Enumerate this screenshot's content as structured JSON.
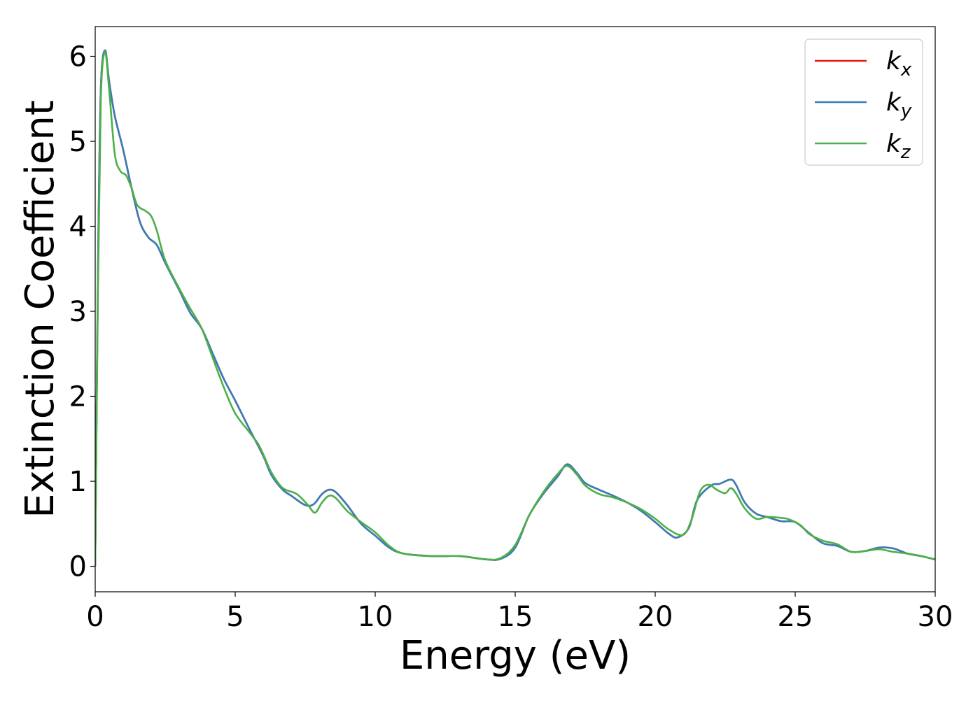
{
  "chart_data": {
    "type": "line",
    "xlabel": "Energy (eV)",
    "ylabel": "Extinction Coefficient",
    "xlim": [
      0,
      30
    ],
    "ylim": [
      -0.3,
      6.35
    ],
    "xticks": [
      "0",
      "5",
      "10",
      "15",
      "20",
      "25",
      "30"
    ],
    "yticks": [
      "0",
      "1",
      "2",
      "3",
      "4",
      "5",
      "6"
    ],
    "grid": false,
    "legend_position": "top-right",
    "series": [
      {
        "name": "k_x",
        "label_main": "k",
        "label_sub": "x",
        "color": "#e41a1c",
        "points": [
          [
            0,
            0
          ],
          [
            0.1,
            3.5
          ],
          [
            0.2,
            5.6
          ],
          [
            0.35,
            6.07
          ],
          [
            0.5,
            5.7
          ],
          [
            0.7,
            5.3
          ],
          [
            1.0,
            4.9
          ],
          [
            1.3,
            4.45
          ],
          [
            1.6,
            4.05
          ],
          [
            1.9,
            3.87
          ],
          [
            2.2,
            3.78
          ],
          [
            2.5,
            3.57
          ],
          [
            3.0,
            3.25
          ],
          [
            3.4,
            2.98
          ],
          [
            3.8,
            2.8
          ],
          [
            4.2,
            2.5
          ],
          [
            4.6,
            2.2
          ],
          [
            5.0,
            1.95
          ],
          [
            5.5,
            1.62
          ],
          [
            6.0,
            1.3
          ],
          [
            6.3,
            1.07
          ],
          [
            6.7,
            0.9
          ],
          [
            7.0,
            0.83
          ],
          [
            7.5,
            0.72
          ],
          [
            7.8,
            0.73
          ],
          [
            8.1,
            0.85
          ],
          [
            8.35,
            0.9
          ],
          [
            8.6,
            0.87
          ],
          [
            9.0,
            0.72
          ],
          [
            9.5,
            0.5
          ],
          [
            10.0,
            0.36
          ],
          [
            10.5,
            0.22
          ],
          [
            11.0,
            0.15
          ],
          [
            12.0,
            0.12
          ],
          [
            13.0,
            0.12
          ],
          [
            14.0,
            0.08
          ],
          [
            14.5,
            0.09
          ],
          [
            15.0,
            0.22
          ],
          [
            15.5,
            0.6
          ],
          [
            16.0,
            0.85
          ],
          [
            16.5,
            1.05
          ],
          [
            16.85,
            1.2
          ],
          [
            17.2,
            1.1
          ],
          [
            17.5,
            0.98
          ],
          [
            18.0,
            0.9
          ],
          [
            18.5,
            0.83
          ],
          [
            19.0,
            0.75
          ],
          [
            19.5,
            0.65
          ],
          [
            20.0,
            0.52
          ],
          [
            20.5,
            0.38
          ],
          [
            20.8,
            0.34
          ],
          [
            21.2,
            0.45
          ],
          [
            21.5,
            0.78
          ],
          [
            22.0,
            0.95
          ],
          [
            22.3,
            0.97
          ],
          [
            22.7,
            1.02
          ],
          [
            22.9,
            0.95
          ],
          [
            23.2,
            0.75
          ],
          [
            23.6,
            0.62
          ],
          [
            24.0,
            0.58
          ],
          [
            24.5,
            0.53
          ],
          [
            25.0,
            0.52
          ],
          [
            25.5,
            0.39
          ],
          [
            26.0,
            0.27
          ],
          [
            26.5,
            0.24
          ],
          [
            27.0,
            0.17
          ],
          [
            27.5,
            0.18
          ],
          [
            28.0,
            0.22
          ],
          [
            28.5,
            0.21
          ],
          [
            29.0,
            0.15
          ],
          [
            29.5,
            0.12
          ],
          [
            30.0,
            0.08
          ]
        ]
      },
      {
        "name": "k_y",
        "label_main": "k",
        "label_sub": "y",
        "color": "#377eb8",
        "points": [
          [
            0,
            0
          ],
          [
            0.1,
            3.5
          ],
          [
            0.2,
            5.6
          ],
          [
            0.35,
            6.07
          ],
          [
            0.5,
            5.7
          ],
          [
            0.7,
            5.3
          ],
          [
            1.0,
            4.9
          ],
          [
            1.3,
            4.45
          ],
          [
            1.6,
            4.05
          ],
          [
            1.9,
            3.87
          ],
          [
            2.2,
            3.78
          ],
          [
            2.5,
            3.57
          ],
          [
            3.0,
            3.25
          ],
          [
            3.4,
            2.98
          ],
          [
            3.8,
            2.8
          ],
          [
            4.2,
            2.5
          ],
          [
            4.6,
            2.2
          ],
          [
            5.0,
            1.95
          ],
          [
            5.5,
            1.62
          ],
          [
            6.0,
            1.3
          ],
          [
            6.3,
            1.07
          ],
          [
            6.7,
            0.9
          ],
          [
            7.0,
            0.83
          ],
          [
            7.5,
            0.72
          ],
          [
            7.8,
            0.73
          ],
          [
            8.1,
            0.85
          ],
          [
            8.35,
            0.9
          ],
          [
            8.6,
            0.87
          ],
          [
            9.0,
            0.72
          ],
          [
            9.5,
            0.5
          ],
          [
            10.0,
            0.36
          ],
          [
            10.5,
            0.22
          ],
          [
            11.0,
            0.15
          ],
          [
            12.0,
            0.12
          ],
          [
            13.0,
            0.12
          ],
          [
            14.0,
            0.08
          ],
          [
            14.5,
            0.09
          ],
          [
            15.0,
            0.22
          ],
          [
            15.5,
            0.6
          ],
          [
            16.0,
            0.85
          ],
          [
            16.5,
            1.05
          ],
          [
            16.85,
            1.2
          ],
          [
            17.2,
            1.1
          ],
          [
            17.5,
            0.98
          ],
          [
            18.0,
            0.9
          ],
          [
            18.5,
            0.83
          ],
          [
            19.0,
            0.75
          ],
          [
            19.5,
            0.65
          ],
          [
            20.0,
            0.52
          ],
          [
            20.5,
            0.38
          ],
          [
            20.8,
            0.34
          ],
          [
            21.2,
            0.45
          ],
          [
            21.5,
            0.78
          ],
          [
            22.0,
            0.95
          ],
          [
            22.3,
            0.97
          ],
          [
            22.7,
            1.02
          ],
          [
            22.9,
            0.95
          ],
          [
            23.2,
            0.75
          ],
          [
            23.6,
            0.62
          ],
          [
            24.0,
            0.58
          ],
          [
            24.5,
            0.53
          ],
          [
            25.0,
            0.52
          ],
          [
            25.5,
            0.39
          ],
          [
            26.0,
            0.27
          ],
          [
            26.5,
            0.24
          ],
          [
            27.0,
            0.17
          ],
          [
            27.5,
            0.18
          ],
          [
            28.0,
            0.22
          ],
          [
            28.5,
            0.21
          ],
          [
            29.0,
            0.15
          ],
          [
            29.5,
            0.12
          ],
          [
            30.0,
            0.08
          ]
        ]
      },
      {
        "name": "k_z",
        "label_main": "k",
        "label_sub": "z",
        "color": "#4daf4a",
        "points": [
          [
            0,
            0
          ],
          [
            0.1,
            3.3
          ],
          [
            0.2,
            5.5
          ],
          [
            0.35,
            6.05
          ],
          [
            0.5,
            5.6
          ],
          [
            0.7,
            4.85
          ],
          [
            0.9,
            4.65
          ],
          [
            1.1,
            4.6
          ],
          [
            1.3,
            4.45
          ],
          [
            1.5,
            4.25
          ],
          [
            1.8,
            4.18
          ],
          [
            2.0,
            4.12
          ],
          [
            2.2,
            3.95
          ],
          [
            2.5,
            3.6
          ],
          [
            3.0,
            3.27
          ],
          [
            3.4,
            3.03
          ],
          [
            3.8,
            2.8
          ],
          [
            4.2,
            2.45
          ],
          [
            4.6,
            2.1
          ],
          [
            5.0,
            1.8
          ],
          [
            5.5,
            1.58
          ],
          [
            5.8,
            1.45
          ],
          [
            6.0,
            1.32
          ],
          [
            6.3,
            1.1
          ],
          [
            6.7,
            0.92
          ],
          [
            7.2,
            0.85
          ],
          [
            7.6,
            0.72
          ],
          [
            7.85,
            0.63
          ],
          [
            8.1,
            0.75
          ],
          [
            8.35,
            0.83
          ],
          [
            8.6,
            0.8
          ],
          [
            9.0,
            0.65
          ],
          [
            9.5,
            0.52
          ],
          [
            10.0,
            0.4
          ],
          [
            10.5,
            0.24
          ],
          [
            11.0,
            0.15
          ],
          [
            12.0,
            0.12
          ],
          [
            13.0,
            0.12
          ],
          [
            14.0,
            0.08
          ],
          [
            14.5,
            0.1
          ],
          [
            15.0,
            0.25
          ],
          [
            15.5,
            0.6
          ],
          [
            16.0,
            0.87
          ],
          [
            16.5,
            1.08
          ],
          [
            16.85,
            1.18
          ],
          [
            17.2,
            1.08
          ],
          [
            17.5,
            0.95
          ],
          [
            18.0,
            0.85
          ],
          [
            18.5,
            0.81
          ],
          [
            19.0,
            0.75
          ],
          [
            19.5,
            0.67
          ],
          [
            20.0,
            0.56
          ],
          [
            20.5,
            0.43
          ],
          [
            21.0,
            0.37
          ],
          [
            21.3,
            0.55
          ],
          [
            21.6,
            0.88
          ],
          [
            21.9,
            0.96
          ],
          [
            22.2,
            0.9
          ],
          [
            22.5,
            0.86
          ],
          [
            22.7,
            0.92
          ],
          [
            22.9,
            0.85
          ],
          [
            23.2,
            0.68
          ],
          [
            23.6,
            0.56
          ],
          [
            24.0,
            0.58
          ],
          [
            24.5,
            0.57
          ],
          [
            24.8,
            0.55
          ],
          [
            25.2,
            0.48
          ],
          [
            25.5,
            0.38
          ],
          [
            26.0,
            0.3
          ],
          [
            26.5,
            0.26
          ],
          [
            27.0,
            0.17
          ],
          [
            27.5,
            0.18
          ],
          [
            28.0,
            0.2
          ],
          [
            28.5,
            0.17
          ],
          [
            29.0,
            0.15
          ],
          [
            29.5,
            0.12
          ],
          [
            30.0,
            0.08
          ]
        ]
      }
    ]
  }
}
